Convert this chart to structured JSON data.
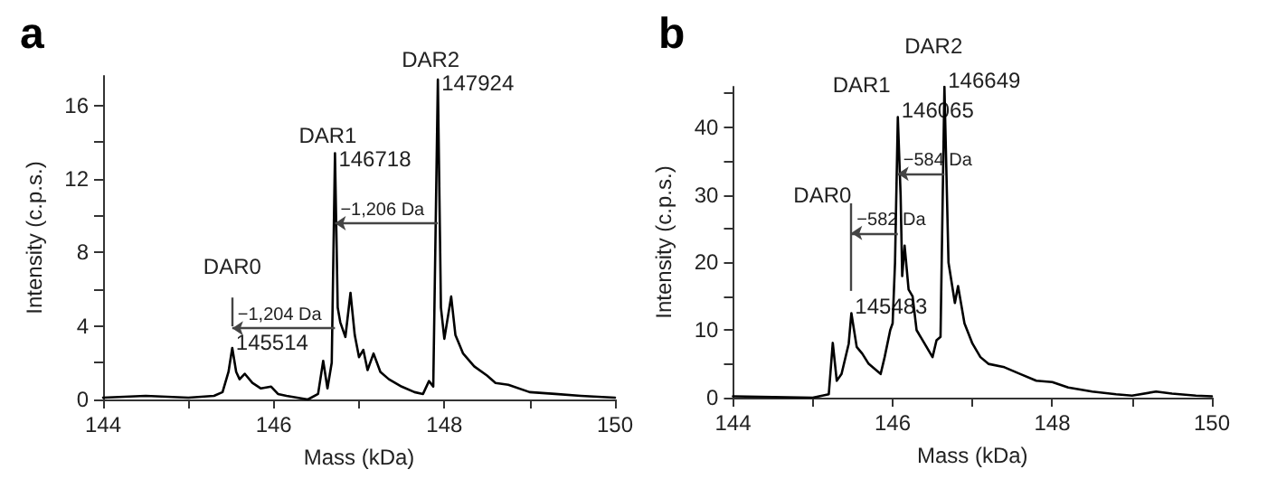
{
  "chart_data": [
    {
      "type": "line",
      "title": "a",
      "xlabel": "Mass (kDa)",
      "ylabel": "Intensity (c.p.s.)",
      "xlim": [
        144,
        150
      ],
      "ylim": [
        0,
        17.6
      ],
      "xticks": [
        144,
        {
          "value": 145,
          "label": null
        },
        146,
        {
          "value": 147,
          "label": null
        },
        148,
        {
          "value": 149,
          "label": null
        },
        150
      ],
      "yticks": [
        0,
        {
          "value": 2,
          "label": null
        },
        4,
        {
          "value": 6,
          "label": null
        },
        8,
        {
          "value": 10,
          "label": null
        },
        12,
        {
          "value": 14,
          "label": null
        },
        16
      ],
      "grid": false,
      "marker": "none",
      "line_style": "solid",
      "series": [
        {
          "color": "#000000",
          "x": [
            144,
            144.5,
            145,
            145.3,
            145.4,
            145.47,
            145.514,
            145.56,
            145.6,
            145.66,
            145.75,
            145.85,
            145.97,
            146.05,
            146.15,
            146.4,
            146.52,
            146.58,
            146.63,
            146.68,
            146.718,
            146.75,
            146.78,
            146.84,
            146.9,
            146.95,
            147.0,
            147.05,
            147.1,
            147.17,
            147.25,
            147.35,
            147.5,
            147.65,
            147.75,
            147.82,
            147.87,
            147.924,
            147.96,
            148.0,
            148.08,
            148.13,
            148.22,
            148.35,
            148.5,
            148.6,
            148.75,
            149,
            149.3,
            149.6,
            150
          ],
          "values": [
            0.1,
            0.2,
            0.1,
            0.2,
            0.4,
            1.5,
            2.8,
            1.5,
            1.1,
            1.4,
            0.9,
            0.6,
            0.7,
            0.3,
            0.2,
            0,
            0.3,
            2.1,
            0.6,
            2,
            13.4,
            5,
            4.2,
            3.4,
            5.8,
            3.5,
            2.3,
            2.7,
            1.6,
            2.5,
            1.5,
            1.1,
            0.7,
            0.4,
            0.3,
            1,
            0.7,
            17.4,
            5,
            3.3,
            5.6,
            3.5,
            2.5,
            1.8,
            1.3,
            0.9,
            0.8,
            0.4,
            0.3,
            0.2,
            0.1
          ]
        }
      ],
      "annotations": [
        "DAR0",
        {
          "text": "145514",
          "x": 145.514,
          "y": 3.1
        },
        "DAR1",
        {
          "text": "146718",
          "x": 146.718,
          "y": 13.1
        },
        "DAR2",
        {
          "text": "147924",
          "x": 147.924,
          "y": 17.2
        },
        "−1,204 Da",
        "−1,206 Da"
      ]
    },
    {
      "type": "line",
      "title": "b",
      "xlabel": "Mass (kDa)",
      "ylabel": "Intensity (c.p.s.)",
      "xlim": [
        144,
        150
      ],
      "ylim": [
        0,
        46
      ],
      "xticks": [
        144,
        {
          "value": 145,
          "label": null
        },
        146,
        {
          "value": 147,
          "label": null
        },
        148,
        {
          "value": 149,
          "label": null
        },
        150
      ],
      "yticks": [
        0,
        {
          "value": 5,
          "label": null
        },
        10,
        {
          "value": 15,
          "label": null
        },
        20,
        {
          "value": 25,
          "label": null
        },
        30,
        {
          "value": 35,
          "label": null
        },
        40,
        {
          "value": 45,
          "label": null
        }
      ],
      "grid": false,
      "marker": "none",
      "line_style": "solid",
      "series": [
        {
          "color": "#000000",
          "x": [
            144,
            144.5,
            145,
            145.2,
            145.25,
            145.3,
            145.36,
            145.45,
            145.483,
            145.55,
            145.62,
            145.7,
            145.8,
            145.85,
            145.9,
            145.97,
            146.0,
            146.03,
            146.065,
            146.1,
            146.12,
            146.15,
            146.2,
            146.25,
            146.3,
            146.4,
            146.5,
            146.55,
            146.6,
            146.649,
            146.7,
            146.78,
            146.82,
            146.9,
            147.0,
            147.1,
            147.2,
            147.4,
            147.6,
            147.8,
            148.0,
            148.2,
            148.5,
            148.8,
            149.0,
            149.3,
            149.5,
            149.8,
            150
          ],
          "values": [
            0.2,
            0.1,
            0,
            0.5,
            8.1,
            2.5,
            3.5,
            8,
            12.5,
            7.5,
            6.5,
            5,
            4,
            3.5,
            6,
            10,
            11,
            20,
            41.5,
            30,
            18,
            22.5,
            16,
            15,
            10,
            8,
            6,
            8.5,
            9,
            46,
            20,
            14,
            16.5,
            11,
            8,
            6,
            5,
            4.5,
            3.5,
            2.5,
            2.3,
            1.5,
            0.9,
            0.5,
            0.3,
            0.9,
            0.6,
            0.3,
            0.2
          ]
        }
      ],
      "annotations": [
        "DAR0",
        {
          "text": "145483",
          "x": 145.483,
          "y": 13.5
        },
        "DAR1",
        {
          "text": "146065",
          "x": 146.065,
          "y": 42.5
        },
        "DAR2",
        {
          "text": "146649",
          "x": 146.649,
          "y": 47
        },
        "−582 Da",
        "−584 Da"
      ]
    }
  ]
}
